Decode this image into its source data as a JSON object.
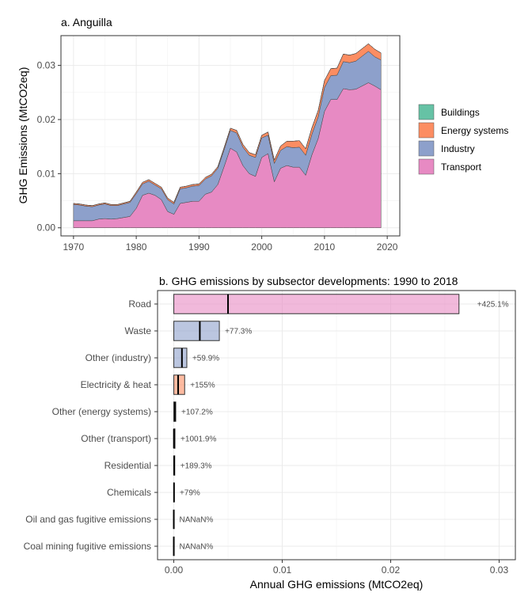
{
  "chart_data": [
    {
      "type": "area",
      "title": "a. Anguilla",
      "xlabel": "",
      "ylabel": "GHG Emissions (MtCO2eq)",
      "xlim": [
        1968,
        2022
      ],
      "ylim": [
        -0.0015,
        0.0355
      ],
      "xticks": [
        1970,
        1980,
        1990,
        2000,
        2010,
        2020
      ],
      "yticks": [
        0.0,
        0.01,
        0.02,
        0.03
      ],
      "ytick_labels": [
        "0.00",
        "0.01",
        "0.02",
        "0.03"
      ],
      "grid": true,
      "legend_position": "right",
      "x": [
        1970,
        1971,
        1972,
        1973,
        1974,
        1975,
        1976,
        1977,
        1978,
        1979,
        1980,
        1981,
        1982,
        1983,
        1984,
        1985,
        1986,
        1987,
        1988,
        1989,
        1990,
        1991,
        1992,
        1993,
        1994,
        1995,
        1996,
        1997,
        1998,
        1999,
        2000,
        2001,
        2002,
        2003,
        2004,
        2005,
        2006,
        2007,
        2008,
        2009,
        2010,
        2011,
        2012,
        2013,
        2014,
        2015,
        2016,
        2017,
        2018,
        2019
      ],
      "series": [
        {
          "name": "Buildings",
          "color": "#66c2a5",
          "values": [
            0,
            0,
            0,
            0,
            0,
            0,
            0,
            0,
            0,
            0,
            0,
            0,
            0,
            0,
            0,
            0,
            0,
            0,
            0,
            0,
            0,
            0,
            0,
            0,
            0,
            0,
            0,
            0,
            0,
            0,
            0,
            0,
            0,
            0,
            0,
            0,
            0,
            0,
            0,
            0,
            0,
            0,
            0,
            0,
            0,
            0,
            0,
            0,
            0,
            0
          ]
        },
        {
          "name": "Energy systems",
          "color": "#fc8d62",
          "values": [
            0.0002,
            0.0002,
            0.0002,
            0.0002,
            0.0002,
            0.0002,
            0.0002,
            0.0002,
            0.0002,
            0.0002,
            0.0003,
            0.0003,
            0.0003,
            0.0003,
            0.0003,
            0.0003,
            0.0003,
            0.0003,
            0.0003,
            0.0003,
            0.0003,
            0.0003,
            0.0003,
            0.0003,
            0.0004,
            0.0004,
            0.0005,
            0.0005,
            0.0005,
            0.0005,
            0.0005,
            0.0006,
            0.0006,
            0.0008,
            0.001,
            0.0012,
            0.0012,
            0.0012,
            0.0012,
            0.0012,
            0.0013,
            0.0013,
            0.0013,
            0.0014,
            0.0014,
            0.0014,
            0.0014,
            0.0014,
            0.0014,
            0.0013
          ]
        },
        {
          "name": "Industry",
          "color": "#8da0cb",
          "values": [
            0.003,
            0.0029,
            0.0027,
            0.0026,
            0.0026,
            0.0027,
            0.0025,
            0.0024,
            0.0025,
            0.0026,
            0.0027,
            0.0021,
            0.0022,
            0.0019,
            0.002,
            0.0022,
            0.0019,
            0.0027,
            0.0027,
            0.0028,
            0.0029,
            0.0028,
            0.003,
            0.003,
            0.0031,
            0.0033,
            0.0035,
            0.0034,
            0.0034,
            0.0035,
            0.0036,
            0.0034,
            0.0034,
            0.0033,
            0.0035,
            0.0036,
            0.0037,
            0.0037,
            0.0038,
            0.004,
            0.0044,
            0.0044,
            0.0045,
            0.005,
            0.005,
            0.0052,
            0.0055,
            0.0058,
            0.0054,
            0.0055
          ]
        },
        {
          "name": "Transport",
          "color": "#e78ac3",
          "values": [
            0.0013,
            0.0013,
            0.0013,
            0.0013,
            0.0016,
            0.0017,
            0.0016,
            0.0017,
            0.0019,
            0.0021,
            0.0036,
            0.006,
            0.0064,
            0.006,
            0.0052,
            0.003,
            0.0025,
            0.0045,
            0.0047,
            0.0049,
            0.0049,
            0.0062,
            0.0066,
            0.008,
            0.0113,
            0.0147,
            0.014,
            0.0115,
            0.01,
            0.0095,
            0.013,
            0.0137,
            0.0085,
            0.011,
            0.0115,
            0.0112,
            0.0112,
            0.0097,
            0.0135,
            0.0165,
            0.0215,
            0.0237,
            0.0237,
            0.0257,
            0.0255,
            0.0256,
            0.0262,
            0.0268,
            0.0262,
            0.0255
          ]
        }
      ]
    },
    {
      "type": "bar",
      "orientation": "horizontal",
      "title": "b. GHG emissions by subsector developments: 1990 to 2018",
      "xlabel": "Annual GHG emissions (MtCO2eq)",
      "ylabel": "",
      "xlim": [
        -0.0015,
        0.0315
      ],
      "xticks": [
        0.0,
        0.01,
        0.02,
        0.03
      ],
      "xtick_labels": [
        "0.00",
        "0.01",
        "0.02",
        "0.03"
      ],
      "grid": true,
      "categories": [
        "Road",
        "Waste",
        "Other (industry)",
        "Electricity & heat",
        "Other (energy systems)",
        "Other (transport)",
        "Residential",
        "Chemicals",
        "Oil and gas fugitive emissions",
        "Coal mining fugitive emissions"
      ],
      "values_2018": [
        0.0263,
        0.0042,
        0.0012,
        0.001,
        0.00018,
        0.00011,
        9e-05,
        3e-05,
        0,
        0
      ],
      "values_1990": [
        0.005,
        0.0024,
        0.00075,
        0.0004,
        9e-05,
        1e-05,
        3e-05,
        2e-05,
        0,
        0
      ],
      "change_labels": [
        "+425.1%",
        "+77.3%",
        "+59.9%",
        "+155%",
        "+107.2%",
        "+1001.9%",
        "+189.3%",
        "+79%",
        "NANaN%",
        "NANaN%"
      ],
      "bar_colors": [
        "#e78ac3",
        "#8da0cb",
        "#8da0cb",
        "#fc8d62",
        "#fc8d62",
        "#e78ac3",
        "#66c2a5",
        "#8da0cb",
        "#fc8d62",
        "#fc8d62"
      ]
    }
  ]
}
